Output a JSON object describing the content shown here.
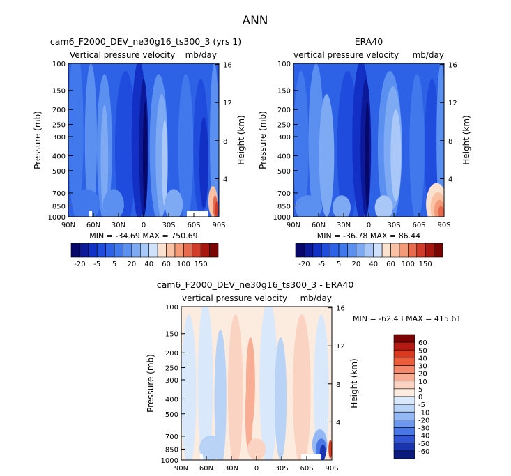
{
  "page_title": "ANN",
  "panels": [
    {
      "title": "cam6_F2000_DEV_ne30g16_ts300_3 (yrs 1)",
      "var_label": "Vertical pressure velocity",
      "units": "mb/day",
      "min_max": "MIN = -34.69   MAX = 750.69"
    },
    {
      "title": "ERA40",
      "var_label": "vertical pressure velocity",
      "units": "mb/day",
      "min_max": "MIN = -36.78   MAX = 86.44"
    },
    {
      "title": "cam6_F2000_DEV_ne30g16_ts300_3 - ERA40",
      "var_label": "vertical pressure velocity",
      "units": "mb/day",
      "min_max": "MIN = -62.43   MAX = 415.61"
    }
  ],
  "chart_data": [
    {
      "type": "heatmap",
      "title": "cam6_F2000_DEV_ne30g16_ts300_3 (yrs 1)",
      "subtitle": "Vertical pressure velocity   mb/day",
      "xlabel": "",
      "ylabel": "Pressure (mb)",
      "y2label": "Height (km)",
      "x_ticks": [
        "90N",
        "60N",
        "30N",
        "0",
        "30S",
        "60S",
        "90S"
      ],
      "x_range": [
        90,
        -90
      ],
      "y_ticks": [
        100,
        150,
        200,
        250,
        300,
        400,
        500,
        700,
        850,
        1000
      ],
      "y_range": [
        100,
        1000
      ],
      "y_scale": "log",
      "y2_ticks": [
        4,
        8,
        12,
        16
      ],
      "min": -34.69,
      "max": 750.69,
      "colorbar_ticks": [
        "-20",
        "-5",
        "5",
        "20",
        "40",
        "60",
        "100",
        "150"
      ]
    },
    {
      "type": "heatmap",
      "title": "ERA40",
      "subtitle": "vertical pressure velocity   mb/day",
      "xlabel": "",
      "ylabel": "Pressure (mb)",
      "y2label": "Height (km)",
      "x_ticks": [
        "90N",
        "60N",
        "30N",
        "0",
        "30S",
        "60S",
        "90S"
      ],
      "x_range": [
        90,
        -90
      ],
      "y_ticks": [
        100,
        150,
        200,
        250,
        300,
        400,
        500,
        700,
        850,
        1000
      ],
      "y_range": [
        100,
        1000
      ],
      "y_scale": "log",
      "y2_ticks": [
        4,
        8,
        12,
        16
      ],
      "min": -36.78,
      "max": 86.44,
      "colorbar_ticks": [
        "-20",
        "-5",
        "5",
        "20",
        "40",
        "60",
        "100",
        "150"
      ]
    },
    {
      "type": "heatmap",
      "title": "cam6_F2000_DEV_ne30g16_ts300_3 - ERA40",
      "subtitle": "vertical pressure velocity   mb/day",
      "xlabel": "",
      "ylabel": "Pressure (mb)",
      "y2label": "Height (km)",
      "x_ticks": [
        "90N",
        "60N",
        "30N",
        "0",
        "30S",
        "60S",
        "90S"
      ],
      "x_range": [
        90,
        -90
      ],
      "y_ticks": [
        100,
        150,
        200,
        250,
        300,
        400,
        500,
        700,
        850,
        1000
      ],
      "y_range": [
        100,
        1000
      ],
      "y_scale": "log",
      "y2_ticks": [
        4,
        8,
        12,
        16
      ],
      "min": -62.43,
      "max": 415.61,
      "colorbar_ticks": [
        "60",
        "50",
        "40",
        "30",
        "20",
        "10",
        "5",
        "0",
        "-5",
        "-10",
        "-20",
        "-30",
        "-40",
        "-50",
        "-60"
      ]
    }
  ],
  "colors": {
    "abs_scale": [
      "#08086b",
      "#0c1a9a",
      "#1330c4",
      "#1f4cdc",
      "#2e62e6",
      "#4179ec",
      "#5b90f0",
      "#7eaaf4",
      "#a9c8f7",
      "#d0e2fb",
      "#fbe2cf",
      "#f9c2a4",
      "#f39a79",
      "#e76b4e",
      "#d13c2a",
      "#a8170f",
      "#7a0404"
    ],
    "diff_scale": [
      "#7a0404",
      "#b41a12",
      "#d9391f",
      "#ec5e3b",
      "#f5876a",
      "#f8ae95",
      "#fbd3c2",
      "#fcecdf",
      "#d9e8fb",
      "#b9d3f7",
      "#93b8f3",
      "#6d98ee",
      "#4a77e6",
      "#2f55d4",
      "#1a36ae",
      "#0b1a7e"
    ]
  }
}
